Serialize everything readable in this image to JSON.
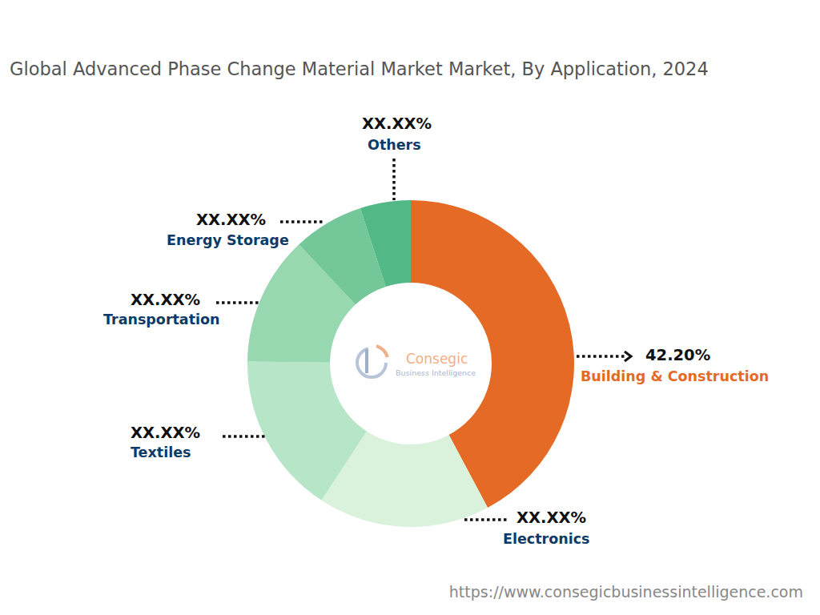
{
  "chart_data": {
    "type": "pie",
    "title": "Global Advanced Phase Change Material Market Market, By Application, 2024",
    "categories": [
      "Building & Construction",
      "Electronics",
      "Textiles",
      "Transportation",
      "Energy Storage",
      "Others"
    ],
    "values": [
      42.2,
      17,
      16,
      12.8,
      7,
      5
    ],
    "value_labels": [
      "42.20%",
      "XX.XX%",
      "XX.XX%",
      "XX.XX%",
      "XX.XX%",
      "XX.XX%"
    ],
    "colors": [
      "#e46a26",
      "#daf2dc",
      "#b6e6c7",
      "#97d8b1",
      "#73c799",
      "#52b986"
    ],
    "data_labels": true,
    "annotations": [
      "Consegic",
      "Business Intelligence",
      "https://www.consegicbusinessintelligence.com"
    ]
  }
}
